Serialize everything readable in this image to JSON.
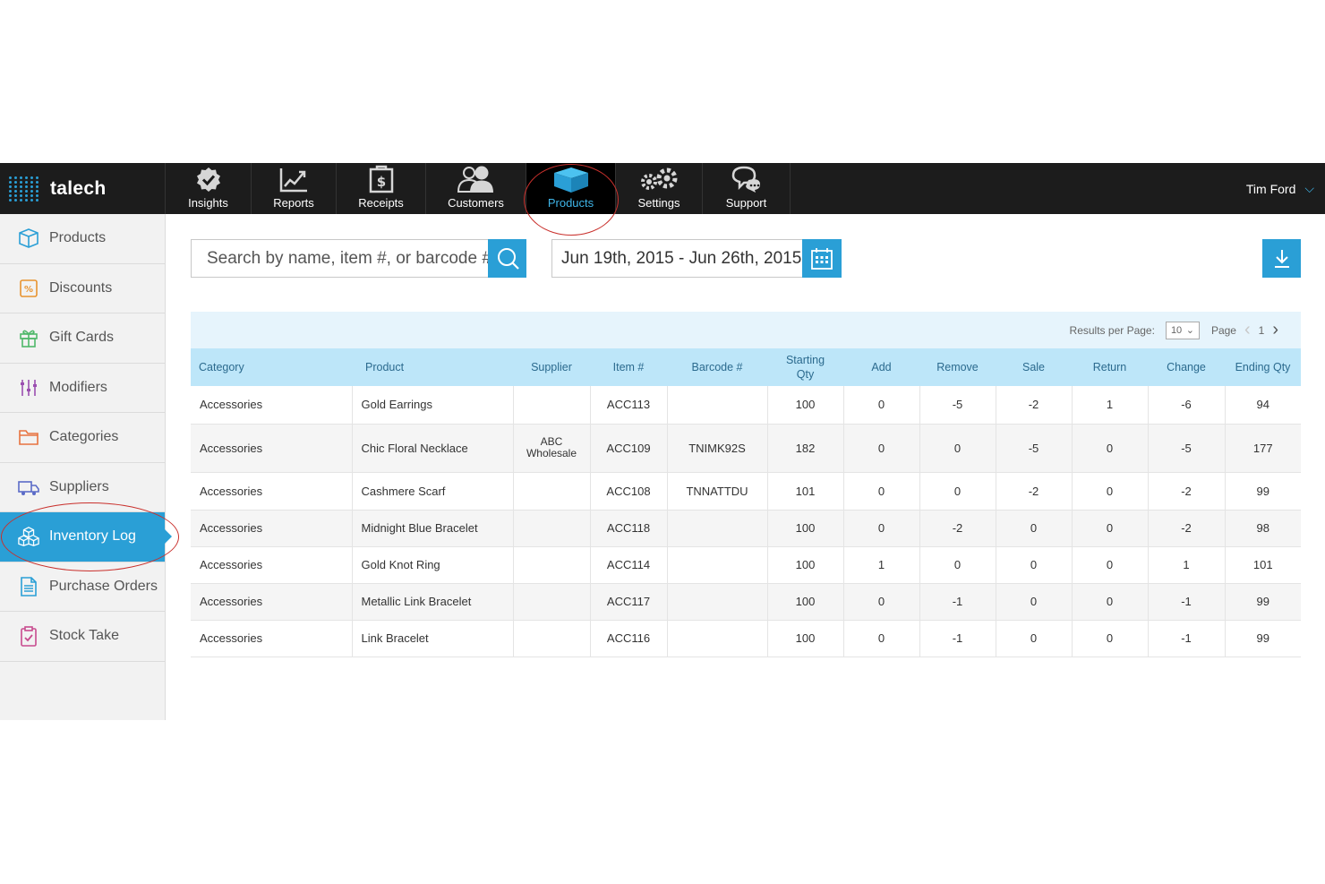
{
  "brand": {
    "name": "talech"
  },
  "nav": {
    "tabs": [
      {
        "label": "Insights",
        "icon": "badge-check-icon"
      },
      {
        "label": "Reports",
        "icon": "line-chart-icon"
      },
      {
        "label": "Receipts",
        "icon": "receipt-dollar-icon"
      },
      {
        "label": "Customers",
        "icon": "people-icon"
      },
      {
        "label": "Products",
        "icon": "box-icon",
        "active": true
      },
      {
        "label": "Settings",
        "icon": "gears-icon"
      },
      {
        "label": "Support",
        "icon": "chat-bubble-icon"
      }
    ],
    "user": "Tim Ford"
  },
  "sidebar": {
    "items": [
      {
        "label": "Products",
        "icon": "box-icon"
      },
      {
        "label": "Discounts",
        "icon": "percent-tag-icon"
      },
      {
        "label": "Gift Cards",
        "icon": "gift-icon"
      },
      {
        "label": "Modifiers",
        "icon": "sliders-icon"
      },
      {
        "label": "Categories",
        "icon": "folder-icon"
      },
      {
        "label": "Suppliers",
        "icon": "truck-icon"
      },
      {
        "label": "Inventory Log",
        "icon": "boxes-icon",
        "active": true
      },
      {
        "label": "Purchase Orders",
        "icon": "document-icon"
      },
      {
        "label": "Stock Take",
        "icon": "clipboard-check-icon"
      }
    ]
  },
  "search": {
    "placeholder": "Search by name, item #, or barcode #"
  },
  "date_range": {
    "value": "Jun 19th, 2015 - Jun 26th, 2015"
  },
  "pagination": {
    "results_label": "Results per Page:",
    "per_page": "10",
    "page_label": "Page",
    "page": "1"
  },
  "table": {
    "columns": [
      {
        "label": "Category",
        "align": "left"
      },
      {
        "label": "Product",
        "align": "left"
      },
      {
        "label": "Supplier",
        "align": "center"
      },
      {
        "label": "Item #",
        "align": "center"
      },
      {
        "label": "Barcode #",
        "align": "center"
      },
      {
        "label": "Starting\nQty",
        "align": "center"
      },
      {
        "label": "Add",
        "align": "center"
      },
      {
        "label": "Remove",
        "align": "center"
      },
      {
        "label": "Sale",
        "align": "center"
      },
      {
        "label": "Return",
        "align": "center"
      },
      {
        "label": "Change",
        "align": "center"
      },
      {
        "label": "Ending Qty",
        "align": "center"
      }
    ],
    "rows": [
      [
        "Accessories",
        "Gold Earrings",
        "",
        "ACC113",
        "",
        "100",
        "0",
        "-5",
        "-2",
        "1",
        "-6",
        "94"
      ],
      [
        "Accessories",
        "Chic Floral Necklace",
        "ABC Wholesale",
        "ACC109",
        "TNIMK92S",
        "182",
        "0",
        "0",
        "-5",
        "0",
        "-5",
        "177"
      ],
      [
        "Accessories",
        "Cashmere Scarf",
        "",
        "ACC108",
        "TNNATTDU",
        "101",
        "0",
        "0",
        "-2",
        "0",
        "-2",
        "99"
      ],
      [
        "Accessories",
        "Midnight Blue Bracelet",
        "",
        "ACC118",
        "",
        "100",
        "0",
        "-2",
        "0",
        "0",
        "-2",
        "98"
      ],
      [
        "Accessories",
        "Gold Knot Ring",
        "",
        "ACC114",
        "",
        "100",
        "1",
        "0",
        "0",
        "0",
        "1",
        "101"
      ],
      [
        "Accessories",
        "Metallic Link Bracelet",
        "",
        "ACC117",
        "",
        "100",
        "0",
        "-1",
        "0",
        "0",
        "-1",
        "99"
      ],
      [
        "Accessories",
        "Link Bracelet",
        "",
        "ACC116",
        "",
        "100",
        "0",
        "-1",
        "0",
        "0",
        "-1",
        "99"
      ]
    ]
  },
  "colors": {
    "accent": "#2a9fd6",
    "header_row": "#bde6f9",
    "pager_bg": "#e6f4fc",
    "topbar": "#1c1c1c",
    "annotation": "#c9302c"
  }
}
